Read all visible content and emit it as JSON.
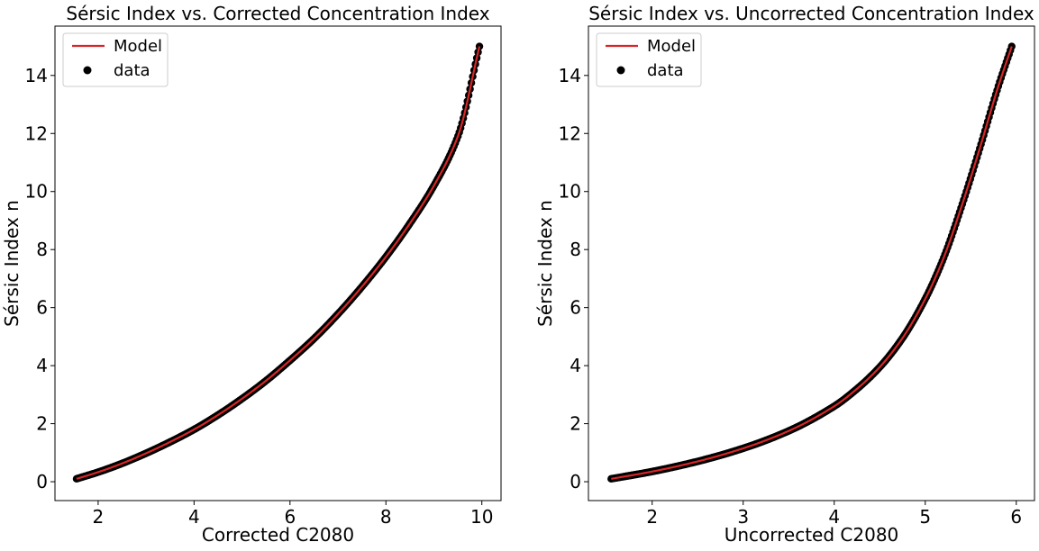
{
  "chart_data": [
    {
      "type": "scatter",
      "title": "Sérsic Index vs. Corrected Concentration Index",
      "xlabel": "Corrected C2080",
      "ylabel": "Sérsic Index n",
      "xlim": [
        1.1,
        10.4
      ],
      "ylim": [
        -0.65,
        15.7
      ],
      "xticks": [
        2,
        4,
        6,
        8,
        10
      ],
      "yticks": [
        0,
        2,
        4,
        6,
        8,
        10,
        12,
        14
      ],
      "grid": false,
      "legend_position": "top-left",
      "series": [
        {
          "name": "Model",
          "kind": "line",
          "color": "#d62728"
        },
        {
          "name": "data",
          "kind": "scatter",
          "color": "#000000"
        }
      ],
      "x": [
        1.55,
        2.0,
        2.5,
        3.0,
        3.5,
        4.0,
        4.5,
        5.0,
        5.5,
        6.0,
        6.5,
        7.0,
        7.5,
        8.0,
        8.5,
        9.0,
        9.5,
        9.95
      ],
      "y": [
        0.1,
        0.33,
        0.63,
        0.98,
        1.37,
        1.8,
        2.3,
        2.86,
        3.48,
        4.18,
        4.93,
        5.78,
        6.72,
        7.75,
        8.9,
        10.2,
        11.9,
        15.0
      ]
    },
    {
      "type": "scatter",
      "title": "Sérsic Index vs. Uncorrected Concentration Index",
      "xlabel": "Uncorrected C2080",
      "ylabel": "Sérsic Index n",
      "xlim": [
        1.3,
        6.2
      ],
      "ylim": [
        -0.65,
        15.7
      ],
      "xticks": [
        2,
        3,
        4,
        5,
        6
      ],
      "yticks": [
        0,
        2,
        4,
        6,
        8,
        10,
        12,
        14
      ],
      "grid": false,
      "legend_position": "top-left",
      "series": [
        {
          "name": "Model",
          "kind": "line",
          "color": "#d62728"
        },
        {
          "name": "data",
          "kind": "scatter",
          "color": "#000000"
        }
      ],
      "x": [
        1.55,
        2.0,
        2.5,
        3.0,
        3.5,
        4.0,
        4.25,
        4.5,
        4.75,
        5.0,
        5.2,
        5.4,
        5.6,
        5.8,
        5.95
      ],
      "y": [
        0.1,
        0.35,
        0.7,
        1.15,
        1.75,
        2.6,
        3.2,
        3.95,
        4.95,
        6.3,
        7.7,
        9.5,
        11.5,
        13.6,
        15.0
      ]
    }
  ]
}
